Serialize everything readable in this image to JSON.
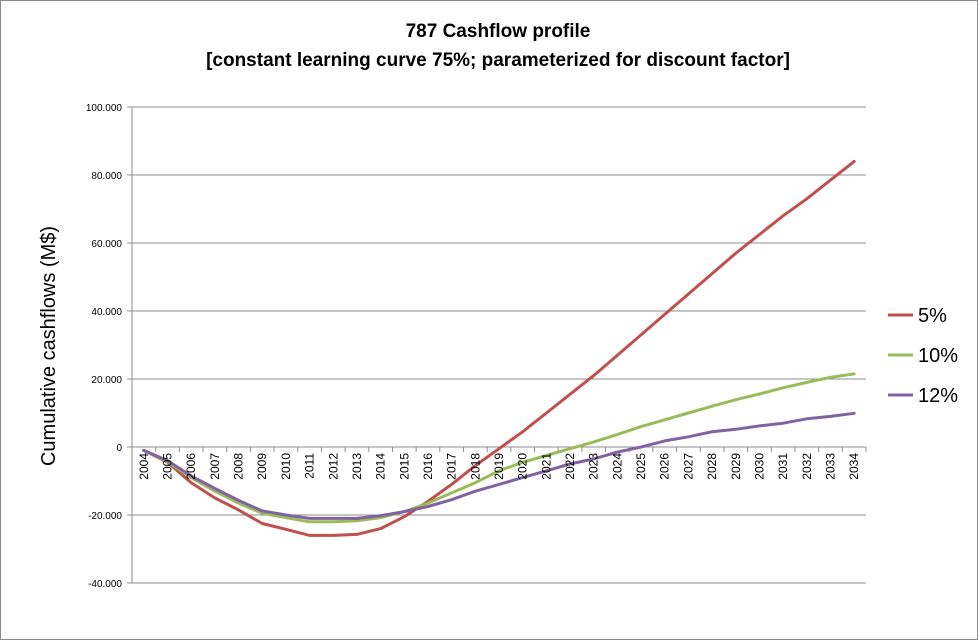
{
  "chart_data": {
    "type": "line",
    "title": "787 Cashflow profile",
    "subtitle": "[constant learning curve 75%; parameterized for discount factor]",
    "xlabel": "",
    "ylabel": "Cumulative cashflows (M$)",
    "x": [
      "2004",
      "2005",
      "2006",
      "2007",
      "2008",
      "2009",
      "2010",
      "2011",
      "2012",
      "2013",
      "2014",
      "2015",
      "2016",
      "2017",
      "2018",
      "2019",
      "2020",
      "2021",
      "2022",
      "2023",
      "2024",
      "2025",
      "2026",
      "2027",
      "2028",
      "2029",
      "2030",
      "2031",
      "2032",
      "2033",
      "2034"
    ],
    "ylim": [
      -40000,
      100000
    ],
    "yticks": [
      100000,
      80000,
      60000,
      40000,
      20000,
      0,
      -20000,
      -40000
    ],
    "ytick_labels": [
      "100.000",
      "80.000",
      "60.000",
      "40.000",
      "20.000",
      "0",
      "-20.000",
      "-40.000"
    ],
    "grid": true,
    "legend_position": "right",
    "series": [
      {
        "name": "5%",
        "color": "#c0504d",
        "values": [
          -1000,
          -4500,
          -10500,
          -15000,
          -18500,
          -22500,
          -24200,
          -26000,
          -26000,
          -25700,
          -24000,
          -20500,
          -16000,
          -11000,
          -5500,
          -500,
          4500,
          10000,
          15500,
          21000,
          27000,
          33000,
          39000,
          45000,
          51000,
          57000,
          62500,
          68000,
          73000,
          78500,
          84000
        ]
      },
      {
        "name": "10%",
        "color": "#9bbb59",
        "values": [
          -1000,
          -4300,
          -9000,
          -13000,
          -16500,
          -19500,
          -20800,
          -22000,
          -22000,
          -21700,
          -20800,
          -19000,
          -16500,
          -13500,
          -10500,
          -7000,
          -4500,
          -2500,
          -500,
          1500,
          3700,
          6000,
          8000,
          10000,
          12000,
          13900,
          15600,
          17400,
          19000,
          20500,
          21500
        ]
      },
      {
        "name": "12%",
        "color": "#8064a2",
        "values": [
          -1000,
          -4000,
          -8500,
          -12200,
          -15700,
          -18800,
          -20000,
          -21000,
          -21000,
          -21000,
          -20200,
          -19000,
          -17500,
          -15500,
          -13000,
          -11000,
          -9000,
          -7000,
          -5000,
          -3500,
          -1500,
          0,
          1800,
          3000,
          4500,
          5200,
          6200,
          7000,
          8300,
          9000,
          9900
        ]
      }
    ]
  }
}
